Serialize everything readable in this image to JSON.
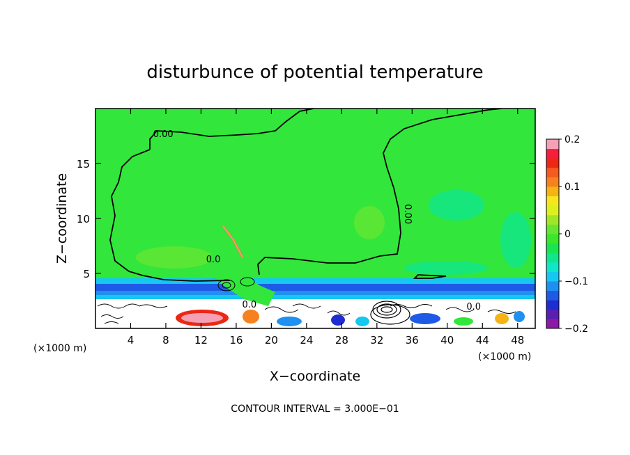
{
  "chart_data": {
    "type": "heatmap",
    "title": "disturbunce of potential temperature",
    "xlabel": "X−coordinate",
    "ylabel": "Z−coordinate",
    "x_unit": "(×1000 m)",
    "x_unit_right": "(×1000 m)",
    "xlim": [
      0,
      50
    ],
    "ylim": [
      0,
      20
    ],
    "x_ticks": [
      4,
      8,
      12,
      16,
      20,
      24,
      28,
      32,
      36,
      40,
      44,
      48
    ],
    "y_ticks": [
      5,
      10,
      15
    ],
    "contour_labels": [
      {
        "text": "0.00",
        "x": 7.7,
        "y": 17.4
      },
      {
        "text": "0.00",
        "x": 35.2,
        "y": 10.4
      },
      {
        "text": "0.0",
        "x": 13.4,
        "y": 6.0
      },
      {
        "text": "0.0",
        "x": 17.5,
        "y": 1.9
      },
      {
        "text": "0.0",
        "x": 43.0,
        "y": 1.7
      }
    ],
    "footer": "CONTOUR INTERVAL = 3.000E−01",
    "colorbar": {
      "min": -0.2,
      "max": 0.2,
      "tick_labels": [
        "0.2",
        "0.1",
        "0",
        "−0.1",
        "−0.2"
      ],
      "tick_values": [
        0.2,
        0.1,
        0,
        -0.1,
        -0.2
      ],
      "colors": [
        "#8c1aa6",
        "#5a1fb0",
        "#1e2dd2",
        "#1e5ae6",
        "#1e91f0",
        "#14c8f0",
        "#10e6c8",
        "#10e68c",
        "#18e650",
        "#3ce628",
        "#64e632",
        "#a0e628",
        "#dcf01e",
        "#f5e61e",
        "#f5b414",
        "#f5821e",
        "#f55a1e",
        "#eb2814",
        "#f51e3c",
        "#f5a0b4"
      ]
    },
    "main_field": {
      "dominant_value": 0,
      "dominant_color": "#32e63c"
    }
  }
}
